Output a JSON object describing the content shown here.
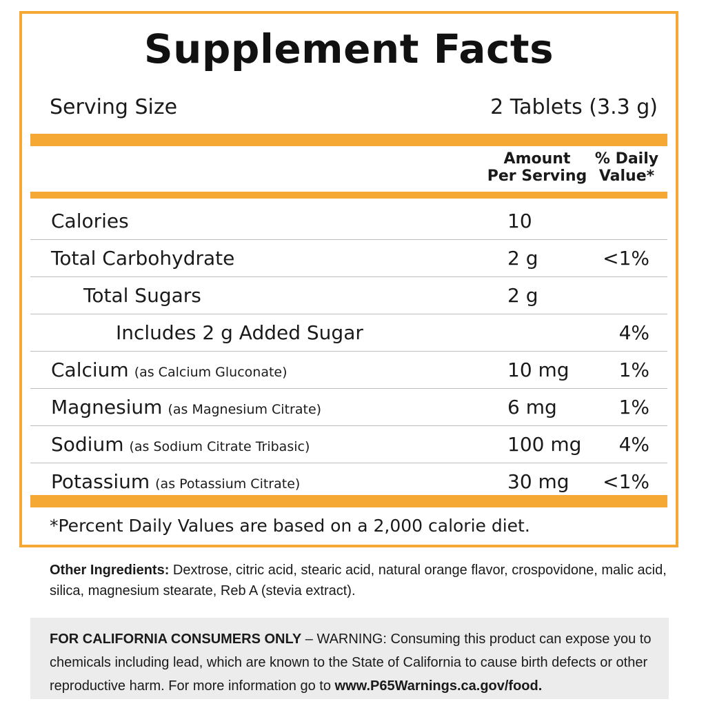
{
  "title": "Supplement Facts",
  "serving": {
    "label": "Serving Size",
    "value": "2 Tablets (3.3 g)"
  },
  "header": {
    "amount_line1": "Amount",
    "amount_line2": "Per Serving",
    "dv_line1": "% Daily",
    "dv_line2": "Value*"
  },
  "rows": [
    {
      "name": "Calories",
      "sub": "",
      "amount": "10",
      "dv": ""
    },
    {
      "name": "Total Carbohydrate",
      "sub": "",
      "amount": "2 g",
      "dv": "<1%"
    },
    {
      "name": "Total Sugars",
      "sub": "",
      "amount": "2 g",
      "dv": ""
    },
    {
      "name": "Includes 2 g Added Sugar",
      "sub": "",
      "amount": "",
      "dv": "4%"
    },
    {
      "name": "Calcium",
      "sub": "(as Calcium Gluconate)",
      "amount": "10 mg",
      "dv": "1%"
    },
    {
      "name": "Magnesium",
      "sub": "(as Magnesium Citrate)",
      "amount": "6 mg",
      "dv": "1%"
    },
    {
      "name": "Sodium",
      "sub": "(as Sodium Citrate Tribasic)",
      "amount": "100 mg",
      "dv": "4%"
    },
    {
      "name": "Potassium",
      "sub": "(as Potassium Citrate)",
      "amount": "30 mg",
      "dv": "<1%"
    }
  ],
  "footnote": "*Percent Daily Values are based on a 2,000 calorie diet.",
  "other_ingredients": {
    "label": "Other Ingredients:",
    "text": " Dextrose, citric acid, stearic acid, natural orange flavor, crospovidone, malic acid, silica, magnesium stearate, Reb A (stevia extract)."
  },
  "warning": {
    "label": "FOR CALIFORNIA CONSUMERS ONLY",
    "text": " – WARNING: Consuming this product can expose you to chemicals including lead, which are known to the State of California to cause birth defects or other reproductive harm. For more information go to ",
    "link": "www.P65Warnings.ca.gov/food."
  },
  "colors": {
    "accent": "#f5a833",
    "divider": "#bdbdbd",
    "warning_bg": "#ececec"
  }
}
